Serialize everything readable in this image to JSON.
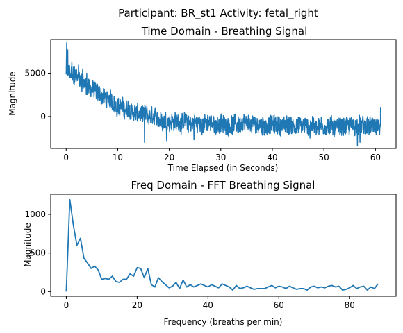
{
  "figure": {
    "suptitle": "Participant: BR_st1  Activity: fetal_right",
    "line_color": "#1f77b4"
  },
  "chart_data": [
    {
      "type": "line",
      "title": "Time Domain - Breathing Signal",
      "xlabel": "Time Elapsed (in Seconds)",
      "ylabel": "Magnitude",
      "xlim": [
        -3,
        64
      ],
      "ylim": [
        -3700,
        8900
      ],
      "xticks": [
        0,
        10,
        20,
        30,
        40,
        50,
        60
      ],
      "yticks": [
        0,
        5000
      ],
      "grid": false,
      "series": [
        {
          "trend": [
            [
              0,
              5200
            ],
            [
              2,
              4500
            ],
            [
              4,
              3600
            ],
            [
              6,
              2800
            ],
            [
              8,
              2000
            ],
            [
              10,
              1300
            ],
            [
              12,
              700
            ],
            [
              14,
              300
            ],
            [
              16,
              0
            ],
            [
              18,
              -300
            ],
            [
              20,
              -500
            ],
            [
              24,
              -800
            ],
            [
              30,
              -900
            ],
            [
              40,
              -1000
            ],
            [
              50,
              -1100
            ],
            [
              61,
              -1200
            ]
          ],
          "noise_amplitude": 1200,
          "x_start": 0,
          "x_end": 61,
          "num_points": 1220,
          "peaks": [
            [
              0.1,
              8500
            ],
            [
              0.3,
              7700
            ],
            [
              0.6,
              4800
            ],
            [
              1.1,
              6300
            ],
            [
              1.6,
              5800
            ],
            [
              2.4,
              6000
            ],
            [
              3.2,
              5500
            ],
            [
              4.0,
              5000
            ]
          ],
          "troughs": [
            [
              15.2,
              -3000
            ],
            [
              19.5,
              -2800
            ],
            [
              24.8,
              -2700
            ],
            [
              47.3,
              -2500
            ],
            [
              56.5,
              -3400
            ],
            [
              57.0,
              -3000
            ],
            [
              60.8,
              -2100
            ]
          ],
          "end_value": 1100
        }
      ]
    },
    {
      "type": "line",
      "title": "Freq Domain - FFT Breathing Signal",
      "xlabel": "Frequency (breaths per min)",
      "ylabel": "Magnitude",
      "xlim": [
        -4.4,
        93.1
      ],
      "ylim": [
        -60,
        1260
      ],
      "xticks": [
        0,
        20,
        40,
        60,
        80
      ],
      "yticks": [
        0,
        500,
        1000
      ],
      "grid": false,
      "series": [
        {
          "x": [
            0,
            1,
            2,
            3,
            4,
            5,
            6,
            7,
            8,
            9,
            10,
            11,
            12,
            13,
            14,
            15,
            16,
            17,
            18,
            19,
            20,
            21,
            22,
            23,
            24,
            25,
            26,
            27,
            28,
            29,
            30,
            31,
            32,
            33,
            34,
            35,
            36,
            37,
            38,
            39,
            40,
            41,
            42,
            43,
            44,
            45,
            46,
            47,
            48,
            49,
            50,
            51,
            52,
            53,
            54,
            55,
            56,
            57,
            58,
            59,
            60,
            61,
            62,
            63,
            64,
            65,
            66,
            67,
            68,
            69,
            70,
            71,
            72,
            73,
            74,
            75,
            76,
            77,
            78,
            79,
            80,
            81,
            82,
            83,
            84,
            85,
            86,
            87,
            88
          ],
          "y": [
            0,
            1190,
            860,
            600,
            690,
            430,
            370,
            300,
            330,
            280,
            160,
            170,
            160,
            200,
            130,
            120,
            160,
            160,
            230,
            200,
            310,
            300,
            180,
            300,
            90,
            60,
            180,
            130,
            90,
            50,
            70,
            120,
            40,
            150,
            60,
            90,
            60,
            80,
            100,
            80,
            60,
            90,
            70,
            50,
            100,
            80,
            60,
            20,
            80,
            40,
            50,
            70,
            50,
            30,
            40,
            40,
            40,
            60,
            80,
            50,
            70,
            60,
            40,
            70,
            50,
            30,
            40,
            40,
            20,
            60,
            70,
            50,
            60,
            50,
            70,
            80,
            60,
            70,
            20,
            30,
            50,
            80,
            40,
            60,
            70,
            20,
            60,
            40,
            100
          ]
        }
      ]
    }
  ]
}
